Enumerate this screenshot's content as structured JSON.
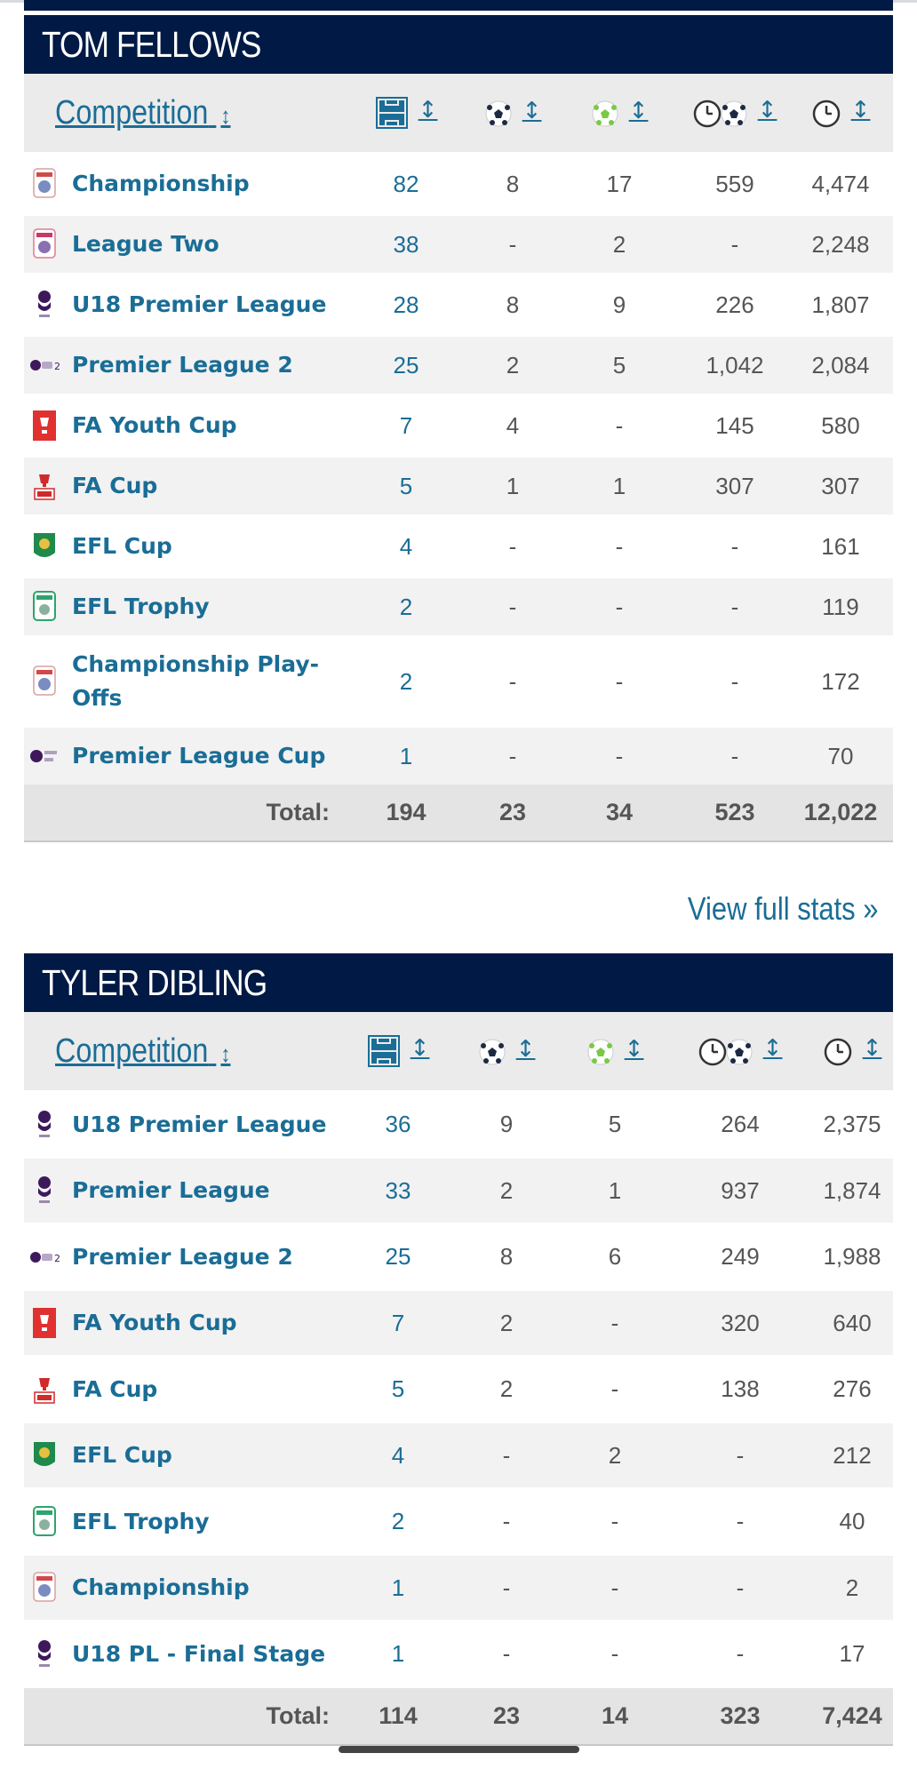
{
  "colors": {
    "header_bg": "#001a45",
    "link": "#1a6d96",
    "text": "#555555",
    "stripe": "#f2f2f2",
    "head_bg": "#ebebeb"
  },
  "columns": {
    "competition": "Competition",
    "sort_symbol": "↕",
    "icons": [
      "appearances-pitch-icon",
      "goals-ball-icon",
      "assists-ball-icon",
      "minutes-per-goal-icon",
      "minutes-played-icon"
    ]
  },
  "players": [
    {
      "name": "TOM FELLOWS",
      "rows": [
        {
          "competition": "Championship",
          "logo": "championship-logo",
          "apps": "82",
          "goals": "8",
          "assists": "17",
          "mins_per_goal": "559",
          "minutes": "4,474"
        },
        {
          "competition": "League Two",
          "logo": "league-two-logo",
          "apps": "38",
          "goals": "-",
          "assists": "2",
          "mins_per_goal": "-",
          "minutes": "2,248"
        },
        {
          "competition": "U18 Premier League",
          "logo": "premier-league-logo",
          "apps": "28",
          "goals": "8",
          "assists": "9",
          "mins_per_goal": "226",
          "minutes": "1,807"
        },
        {
          "competition": "Premier League 2",
          "logo": "premier-league-2-logo",
          "apps": "25",
          "goals": "2",
          "assists": "5",
          "mins_per_goal": "1,042",
          "minutes": "2,084"
        },
        {
          "competition": "FA Youth Cup",
          "logo": "fa-youth-cup-logo",
          "apps": "7",
          "goals": "4",
          "assists": "-",
          "mins_per_goal": "145",
          "minutes": "580"
        },
        {
          "competition": "FA Cup",
          "logo": "fa-cup-logo",
          "apps": "5",
          "goals": "1",
          "assists": "1",
          "mins_per_goal": "307",
          "minutes": "307"
        },
        {
          "competition": "EFL Cup",
          "logo": "efl-cup-logo",
          "apps": "4",
          "goals": "-",
          "assists": "-",
          "mins_per_goal": "-",
          "minutes": "161"
        },
        {
          "competition": "EFL Trophy",
          "logo": "efl-trophy-logo",
          "apps": "2",
          "goals": "-",
          "assists": "-",
          "mins_per_goal": "-",
          "minutes": "119"
        },
        {
          "competition": "Championship Play-Offs",
          "logo": "championship-logo",
          "apps": "2",
          "goals": "-",
          "assists": "-",
          "mins_per_goal": "-",
          "minutes": "172"
        },
        {
          "competition": "Premier League Cup",
          "logo": "premier-league-cup-logo",
          "apps": "1",
          "goals": "-",
          "assists": "-",
          "mins_per_goal": "-",
          "minutes": "70"
        }
      ],
      "total": {
        "label": "Total:",
        "apps": "194",
        "goals": "23",
        "assists": "34",
        "mins_per_goal": "523",
        "minutes": "12,022"
      }
    },
    {
      "name": "TYLER DIBLING",
      "rows": [
        {
          "competition": "U18 Premier League",
          "logo": "premier-league-logo",
          "apps": "36",
          "goals": "9",
          "assists": "5",
          "mins_per_goal": "264",
          "minutes": "2,375"
        },
        {
          "competition": "Premier League",
          "logo": "premier-league-logo",
          "apps": "33",
          "goals": "2",
          "assists": "1",
          "mins_per_goal": "937",
          "minutes": "1,874"
        },
        {
          "competition": "Premier League 2",
          "logo": "premier-league-2-logo",
          "apps": "25",
          "goals": "8",
          "assists": "6",
          "mins_per_goal": "249",
          "minutes": "1,988"
        },
        {
          "competition": "FA Youth Cup",
          "logo": "fa-youth-cup-logo",
          "apps": "7",
          "goals": "2",
          "assists": "-",
          "mins_per_goal": "320",
          "minutes": "640"
        },
        {
          "competition": "FA Cup",
          "logo": "fa-cup-logo",
          "apps": "5",
          "goals": "2",
          "assists": "-",
          "mins_per_goal": "138",
          "minutes": "276"
        },
        {
          "competition": "EFL Cup",
          "logo": "efl-cup-logo",
          "apps": "4",
          "goals": "-",
          "assists": "2",
          "mins_per_goal": "-",
          "minutes": "212"
        },
        {
          "competition": "EFL Trophy",
          "logo": "efl-trophy-logo",
          "apps": "2",
          "goals": "-",
          "assists": "-",
          "mins_per_goal": "-",
          "minutes": "40"
        },
        {
          "competition": "Championship",
          "logo": "championship-logo",
          "apps": "1",
          "goals": "-",
          "assists": "-",
          "mins_per_goal": "-",
          "minutes": "2"
        },
        {
          "competition": "U18 PL - Final Stage",
          "logo": "premier-league-logo",
          "apps": "1",
          "goals": "-",
          "assists": "-",
          "mins_per_goal": "-",
          "minutes": "17"
        }
      ],
      "total": {
        "label": "Total:",
        "apps": "114",
        "goals": "23",
        "assists": "14",
        "mins_per_goal": "323",
        "minutes": "7,424"
      }
    }
  ],
  "links": {
    "view_full_stats": "View full stats »"
  }
}
